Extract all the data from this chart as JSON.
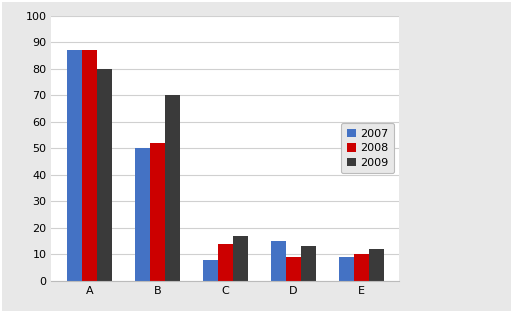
{
  "categories": [
    "A",
    "B",
    "C",
    "D",
    "E"
  ],
  "series": {
    "2007": [
      87,
      50,
      8,
      15,
      9
    ],
    "2008": [
      87,
      52,
      14,
      9,
      10
    ],
    "2009": [
      80,
      70,
      17,
      13,
      12
    ]
  },
  "colors": {
    "2007": "#4472C4",
    "2008": "#CC0000",
    "2009": "#3A3A3A"
  },
  "years": [
    "2007",
    "2008",
    "2009"
  ],
  "ylim": [
    0,
    100
  ],
  "yticks": [
    0,
    10,
    20,
    30,
    40,
    50,
    60,
    70,
    80,
    90,
    100
  ],
  "outer_bg": "#e8e8e8",
  "plot_bg_color": "#ffffff",
  "bar_width": 0.22,
  "grid_color": "#d0d0d0",
  "border_color": "#bbbbbb",
  "tick_label_size": 8,
  "legend_fontsize": 8
}
